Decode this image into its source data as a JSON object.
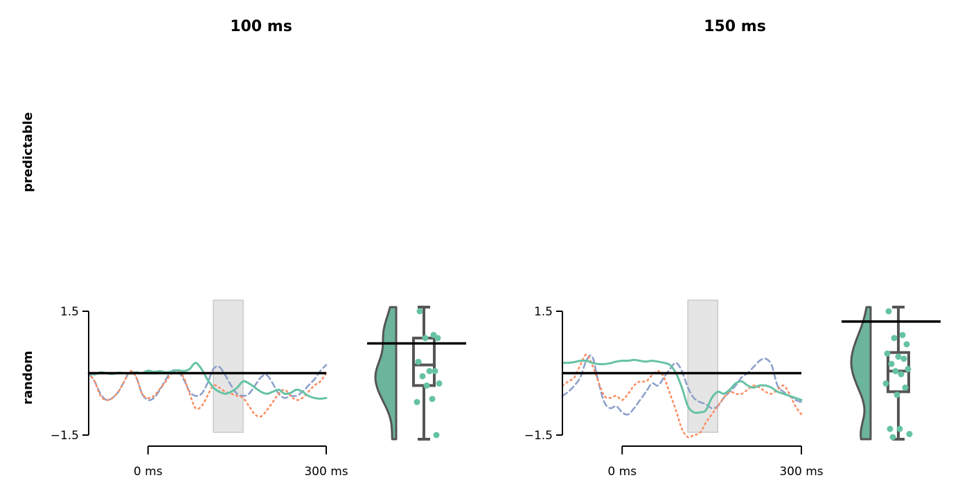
{
  "colors": {
    "green": "#66c2a5",
    "orange": "#fc8d62",
    "blue": "#8da0cb",
    "violin": "#6cb49c",
    "box": "#555555",
    "shade": "#e5e5e5",
    "axis": "#000000"
  },
  "figure": {
    "column_titles": [
      "100 ms",
      "150 ms"
    ],
    "row_labels": [
      "predictable",
      "random"
    ]
  },
  "chart_data": [
    {
      "type": "line",
      "title": "100 ms",
      "row": "random",
      "ylim": [
        -1.5,
        1.5
      ],
      "xlim": [
        -100,
        300
      ],
      "y_ticks": [
        "1.5",
        "−1.5"
      ],
      "x_ticks": [
        "0 ms",
        "300 ms"
      ],
      "baseline": 0,
      "shaded_window": [
        110,
        160
      ],
      "x": [
        -100,
        -90,
        -80,
        -70,
        -60,
        -50,
        -40,
        -30,
        -20,
        -10,
        0,
        10,
        20,
        30,
        40,
        50,
        60,
        70,
        80,
        90,
        100,
        110,
        120,
        130,
        140,
        150,
        160,
        170,
        180,
        190,
        200,
        210,
        220,
        230,
        240,
        250,
        260,
        270,
        280,
        290,
        300
      ],
      "series": [
        {
          "style": "solid",
          "color": "green",
          "values": [
            0.0,
            -0.03,
            0.02,
            0.0,
            -0.02,
            0.01,
            0.0,
            -0.01,
            0.02,
            0.0,
            0.06,
            0.03,
            0.05,
            0.02,
            0.04,
            0.07,
            0.05,
            0.1,
            0.25,
            0.1,
            -0.15,
            -0.35,
            -0.45,
            -0.5,
            -0.45,
            -0.35,
            -0.2,
            -0.25,
            -0.35,
            -0.45,
            -0.5,
            -0.45,
            -0.4,
            -0.5,
            -0.48,
            -0.4,
            -0.45,
            -0.55,
            -0.6,
            -0.62,
            -0.6
          ]
        },
        {
          "style": "dotted",
          "color": "orange",
          "values": [
            0.0,
            -0.2,
            -0.55,
            -0.65,
            -0.6,
            -0.45,
            -0.2,
            0.05,
            -0.1,
            -0.5,
            -0.6,
            -0.55,
            -0.38,
            -0.2,
            0.0,
            0.05,
            -0.1,
            -0.5,
            -0.85,
            -0.8,
            -0.55,
            -0.3,
            -0.35,
            -0.45,
            -0.5,
            -0.55,
            -0.6,
            -0.8,
            -1.0,
            -1.05,
            -0.9,
            -0.7,
            -0.5,
            -0.4,
            -0.55,
            -0.65,
            -0.6,
            -0.45,
            -0.3,
            -0.2,
            0.0
          ]
        },
        {
          "style": "dashed",
          "color": "blue",
          "values": [
            0.0,
            -0.2,
            -0.5,
            -0.65,
            -0.6,
            -0.45,
            -0.2,
            0.05,
            -0.1,
            -0.5,
            -0.65,
            -0.6,
            -0.4,
            -0.15,
            0.05,
            0.05,
            -0.15,
            -0.45,
            -0.55,
            -0.5,
            -0.25,
            0.1,
            0.15,
            -0.05,
            -0.3,
            -0.5,
            -0.55,
            -0.5,
            -0.3,
            -0.1,
            -0.05,
            -0.25,
            -0.5,
            -0.6,
            -0.55,
            -0.55,
            -0.45,
            -0.3,
            -0.15,
            0.05,
            0.2
          ]
        }
      ]
    },
    {
      "type": "violin",
      "title": "100 ms",
      "row": "random",
      "ylim": [
        -1.5,
        1.5
      ],
      "mean_line": 0.72,
      "min": -1.5,
      "max": 1.5,
      "box": {
        "q1": -0.3,
        "median": 0.2,
        "q3": 0.85,
        "whisker_low": -1.5,
        "whisker_high": 1.5
      },
      "points": [
        1.5,
        0.95,
        0.9,
        0.85,
        0.3,
        0.1,
        0.05,
        -0.05,
        -0.2,
        -0.3,
        -0.6,
        -0.65,
        -1.5
      ]
    },
    {
      "type": "line",
      "title": "150 ms",
      "row": "random",
      "ylim": [
        -1.5,
        1.5
      ],
      "xlim": [
        -100,
        300
      ],
      "y_ticks": [
        "1.5",
        "−1.5"
      ],
      "x_ticks": [
        "0 ms",
        "300 ms"
      ],
      "baseline": 0,
      "shaded_window": [
        110,
        160
      ],
      "x": [
        -100,
        -90,
        -80,
        -70,
        -60,
        -50,
        -40,
        -30,
        -20,
        -10,
        0,
        10,
        20,
        30,
        40,
        50,
        60,
        70,
        80,
        90,
        100,
        110,
        120,
        130,
        140,
        150,
        160,
        170,
        180,
        190,
        200,
        210,
        220,
        230,
        240,
        250,
        260,
        270,
        280,
        290,
        300
      ],
      "series": [
        {
          "style": "solid",
          "color": "green",
          "values": [
            0.25,
            0.25,
            0.27,
            0.3,
            0.3,
            0.25,
            0.22,
            0.22,
            0.24,
            0.28,
            0.3,
            0.3,
            0.32,
            0.3,
            0.28,
            0.3,
            0.28,
            0.25,
            0.2,
            0.0,
            -0.35,
            -0.8,
            -0.95,
            -0.95,
            -0.9,
            -0.6,
            -0.45,
            -0.5,
            -0.4,
            -0.25,
            -0.2,
            -0.3,
            -0.35,
            -0.3,
            -0.3,
            -0.35,
            -0.45,
            -0.5,
            -0.55,
            -0.6,
            -0.65
          ]
        },
        {
          "style": "dotted",
          "color": "orange",
          "values": [
            -0.3,
            -0.2,
            -0.1,
            0.2,
            0.45,
            0.2,
            -0.2,
            -0.55,
            -0.6,
            -0.55,
            -0.65,
            -0.5,
            -0.3,
            -0.2,
            -0.2,
            -0.05,
            0.05,
            -0.1,
            -0.5,
            -0.9,
            -1.35,
            -1.55,
            -1.5,
            -1.45,
            -1.2,
            -1.0,
            -0.8,
            -0.6,
            -0.45,
            -0.5,
            -0.5,
            -0.4,
            -0.3,
            -0.35,
            -0.45,
            -0.5,
            -0.4,
            -0.3,
            -0.5,
            -0.8,
            -1.0
          ]
        },
        {
          "style": "dashed",
          "color": "blue",
          "values": [
            -0.55,
            -0.45,
            -0.3,
            -0.1,
            0.3,
            0.4,
            -0.2,
            -0.7,
            -0.85,
            -0.8,
            -0.95,
            -1.0,
            -0.85,
            -0.65,
            -0.45,
            -0.25,
            -0.3,
            -0.1,
            0.1,
            0.25,
            0.05,
            -0.35,
            -0.6,
            -0.7,
            -0.75,
            -0.85,
            -0.8,
            -0.6,
            -0.45,
            -0.3,
            -0.1,
            0.0,
            0.15,
            0.3,
            0.35,
            0.2,
            -0.3,
            -0.45,
            -0.55,
            -0.65,
            -0.7
          ]
        }
      ]
    },
    {
      "type": "violin",
      "title": "150 ms",
      "row": "random",
      "ylim": [
        -1.5,
        1.5
      ],
      "mean_line": 1.25,
      "min": -1.5,
      "max": 1.5,
      "box": {
        "q1": -0.45,
        "median": 0.05,
        "q3": 0.5,
        "whisker_low": -1.5,
        "whisker_high": 1.5
      },
      "points": [
        1.5,
        0.95,
        0.9,
        0.7,
        0.5,
        0.45,
        0.35,
        0.25,
        0.15,
        0.05,
        0.0,
        -0.2,
        -0.35,
        -0.5,
        -1.3,
        -1.35,
        -1.45,
        -1.5
      ]
    }
  ]
}
